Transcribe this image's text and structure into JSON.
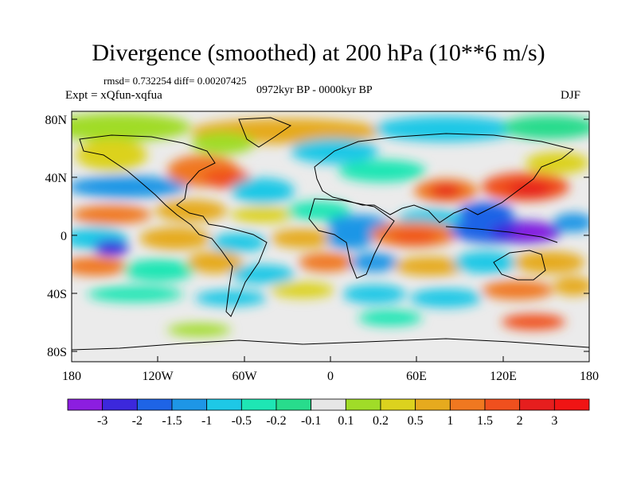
{
  "header": {
    "title": "Divergence (smoothed) at 200 hPa (10**6 m/s)",
    "stats": "rmsd= 0.732254 diff= 0.00207425",
    "experiment": "Expt = xQfun-xqfua",
    "period": "0972kyr BP - 0000kyr BP",
    "season": "DJF"
  },
  "axes": {
    "lat_labels": [
      "80N",
      "40N",
      "0",
      "40S",
      "80S"
    ],
    "lon_labels": [
      "180",
      "120W",
      "60W",
      "0",
      "60E",
      "120E",
      "180"
    ]
  },
  "colorbar": {
    "labels": [
      "-3",
      "-2",
      "-1.5",
      "-1",
      "-0.5",
      "-0.2",
      "-0.1",
      "0.1",
      "0.2",
      "0.5",
      "1",
      "1.5",
      "2",
      "3"
    ],
    "colors": [
      "#8c1ee0",
      "#3c28dc",
      "#1e64e6",
      "#1e96e6",
      "#1ec8e6",
      "#1ee6b4",
      "#28dc8c",
      "#e6e6e6",
      "#a0dc28",
      "#dcd21e",
      "#e6aa1e",
      "#f07820",
      "#f0501e",
      "#e61e1e",
      "#f01414"
    ]
  }
}
